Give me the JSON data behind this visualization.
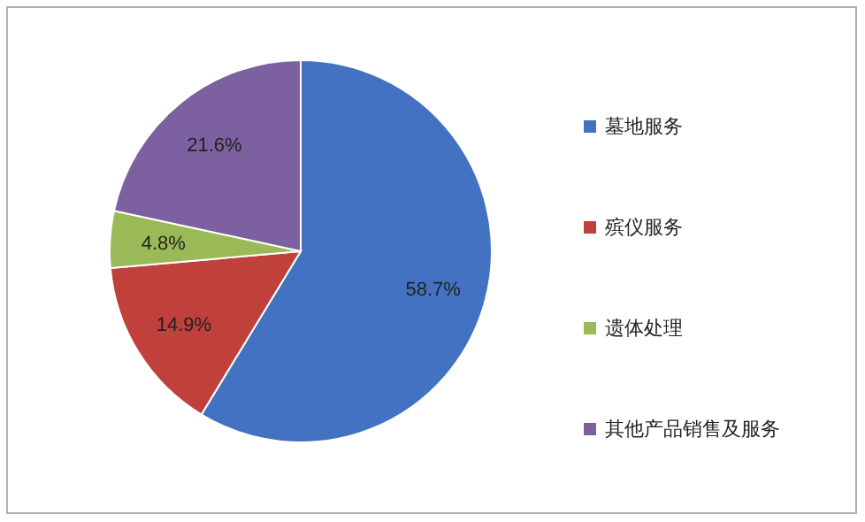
{
  "chart_data": {
    "type": "pie",
    "categories": [
      "墓地服务",
      "殡仪服务",
      "遗体处理",
      "其他产品销售及服务"
    ],
    "values": [
      58.7,
      14.9,
      4.8,
      21.6
    ],
    "colors": [
      "#4372c2",
      "#c0403c",
      "#9aba58",
      "#7d60a0"
    ],
    "value_labels": [
      "58.7%",
      "14.9%",
      "4.8%",
      "21.6%"
    ],
    "legend": "right"
  }
}
